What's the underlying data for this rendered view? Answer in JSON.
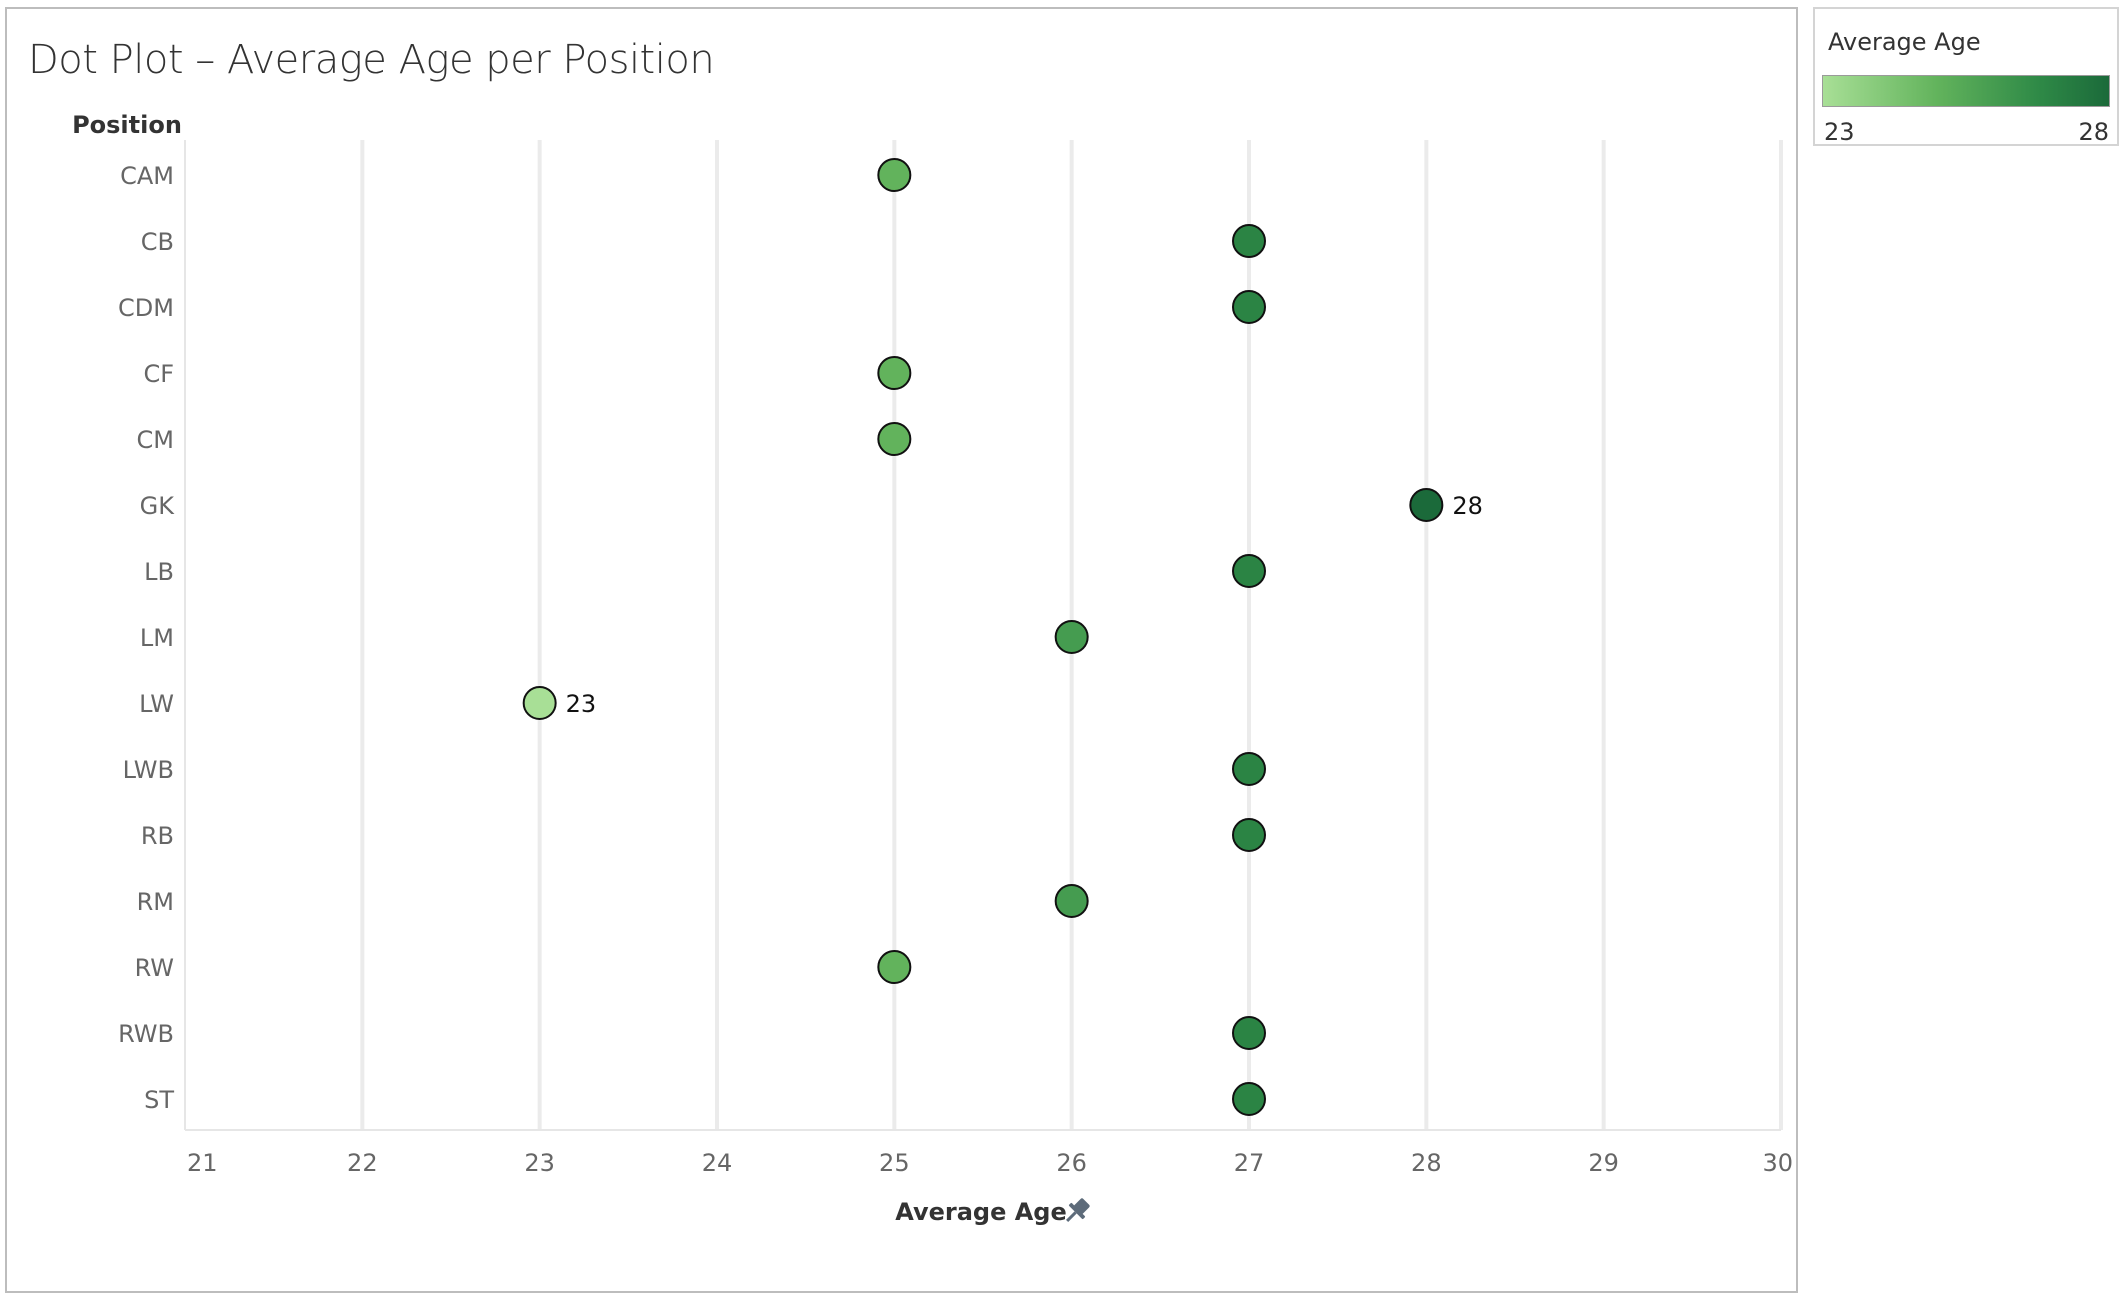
{
  "chart_data": {
    "type": "scatter",
    "title": "Dot Plot – Average Age per Position",
    "ylabel": "Position",
    "xlabel": "Average Age",
    "xlim": [
      21,
      30
    ],
    "xticks": [
      21,
      22,
      23,
      24,
      25,
      26,
      27,
      28,
      29,
      30
    ],
    "grid": "vertical",
    "categories": [
      "CAM",
      "CB",
      "CDM",
      "CF",
      "CM",
      "GK",
      "LB",
      "LM",
      "LW",
      "LWB",
      "RB",
      "RM",
      "RW",
      "RWB",
      "ST"
    ],
    "values": [
      25,
      27,
      27,
      25,
      25,
      28,
      27,
      26,
      23,
      27,
      27,
      26,
      25,
      27,
      27
    ],
    "data_labels": [
      {
        "category": "GK",
        "text": "28"
      },
      {
        "category": "LW",
        "text": "23"
      }
    ],
    "color_legend": {
      "title": "Average Age",
      "min": "23",
      "max": "28",
      "position": "top-right",
      "color_min": "#a8df96",
      "color_max": "#1b6a3a"
    }
  },
  "colors": {
    "gridline": "#ebebeb",
    "axis_text": "#666666",
    "marker_stroke": "#111111"
  },
  "icons": {
    "axis_pin": "pin-icon"
  }
}
